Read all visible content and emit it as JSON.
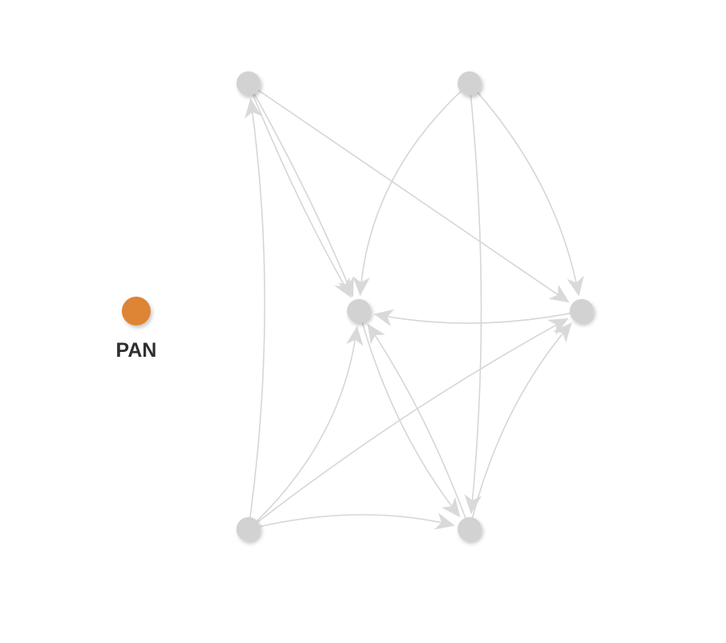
{
  "diagram": {
    "type": "directed-graph",
    "highlight_color": "#dd8435",
    "node_color": "#d2d2d2",
    "edge_color": "#d6d6d6",
    "label_color": "#2f2f2f",
    "nodes": [
      {
        "id": "n_top_left",
        "label": "",
        "highlighted": false
      },
      {
        "id": "n_top_right",
        "label": "",
        "highlighted": false
      },
      {
        "id": "n_center",
        "label": "",
        "highlighted": false
      },
      {
        "id": "n_right",
        "label": "",
        "highlighted": false
      },
      {
        "id": "n_bottom_left",
        "label": "",
        "highlighted": false
      },
      {
        "id": "n_bottom_right",
        "label": "",
        "highlighted": false
      },
      {
        "id": "n_pan",
        "label": "PAN",
        "highlighted": true
      }
    ],
    "edges": [
      {
        "from": "n_bottom_left",
        "to": "n_top_left"
      },
      {
        "from": "n_top_left",
        "to": "n_center"
      },
      {
        "from": "n_top_left",
        "to": "n_center"
      },
      {
        "from": "n_top_left",
        "to": "n_right"
      },
      {
        "from": "n_top_right",
        "to": "n_center"
      },
      {
        "from": "n_top_right",
        "to": "n_bottom_right"
      },
      {
        "from": "n_top_right",
        "to": "n_right"
      },
      {
        "from": "n_right",
        "to": "n_center"
      },
      {
        "from": "n_bottom_left",
        "to": "n_center"
      },
      {
        "from": "n_bottom_left",
        "to": "n_right"
      },
      {
        "from": "n_bottom_left",
        "to": "n_bottom_right"
      },
      {
        "from": "n_center",
        "to": "n_bottom_right"
      },
      {
        "from": "n_bottom_right",
        "to": "n_center"
      },
      {
        "from": "n_bottom_right",
        "to": "n_right"
      }
    ]
  }
}
